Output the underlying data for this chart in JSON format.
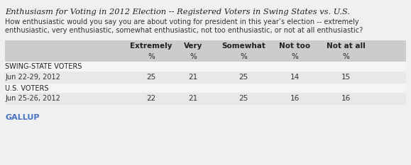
{
  "title": "Enthusiasm for Voting in 2012 Election -- Registered Voters in Swing States vs. U.S.",
  "subtitle_line1": "How enthusiastic would you say you are about voting for president in this year’s election -- extremely",
  "subtitle_line2": "enthusiastic, very enthusiastic, somewhat enthusiastic, not too enthusiastic, or not at all enthusiastic?",
  "col_headers": [
    "Extremely",
    "Very",
    "Somewhat",
    "Not too",
    "Not at all"
  ],
  "col_subheaders": [
    "%",
    "%",
    "%",
    "%",
    "%"
  ],
  "section1_label": "SWING-STATE VOTERS",
  "row1_label": "Jun 22-29, 2012",
  "row1_values": [
    "25",
    "21",
    "25",
    "14",
    "15"
  ],
  "section2_label": "U.S. VOTERS",
  "row2_label": "Jun 25-26, 2012",
  "row2_values": [
    "22",
    "21",
    "25",
    "16",
    "16"
  ],
  "footer": "GALLUP",
  "title_color": "#222222",
  "subtitle_color": "#333333",
  "header_color": "#222222",
  "section_color": "#222222",
  "data_color": "#333333",
  "footer_color": "#4472c4",
  "row_bg_stripe": "#e8e8e8",
  "row_bg_white": "#f5f5f5",
  "header_bg": "#cccccc",
  "bg_color": "#f0f0f0"
}
